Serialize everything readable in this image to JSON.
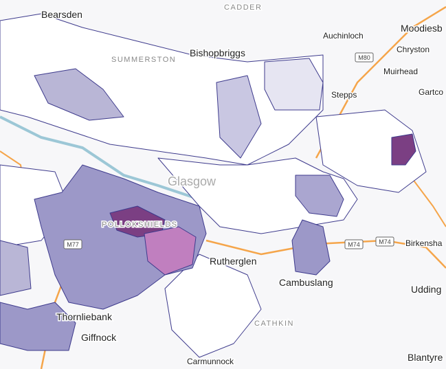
{
  "places": [
    "Bearsden",
    "CADDER",
    "Bishopbriggs",
    "Auchinloch",
    "Moodiesb",
    "Chryston",
    "Muirhead",
    "Stepps",
    "Gartco",
    "SUMMERSTON",
    "Glasgow",
    "POLLOKSHIELDS",
    "Rutherglen",
    "Cambuslang",
    "Birkensha",
    "Udding",
    "Thornliebank",
    "Giffnock",
    "CATHKIN",
    "Carmunnock",
    "Blantyre"
  ],
  "roads": [
    "M80",
    "M77",
    "M74",
    "M74"
  ]
}
